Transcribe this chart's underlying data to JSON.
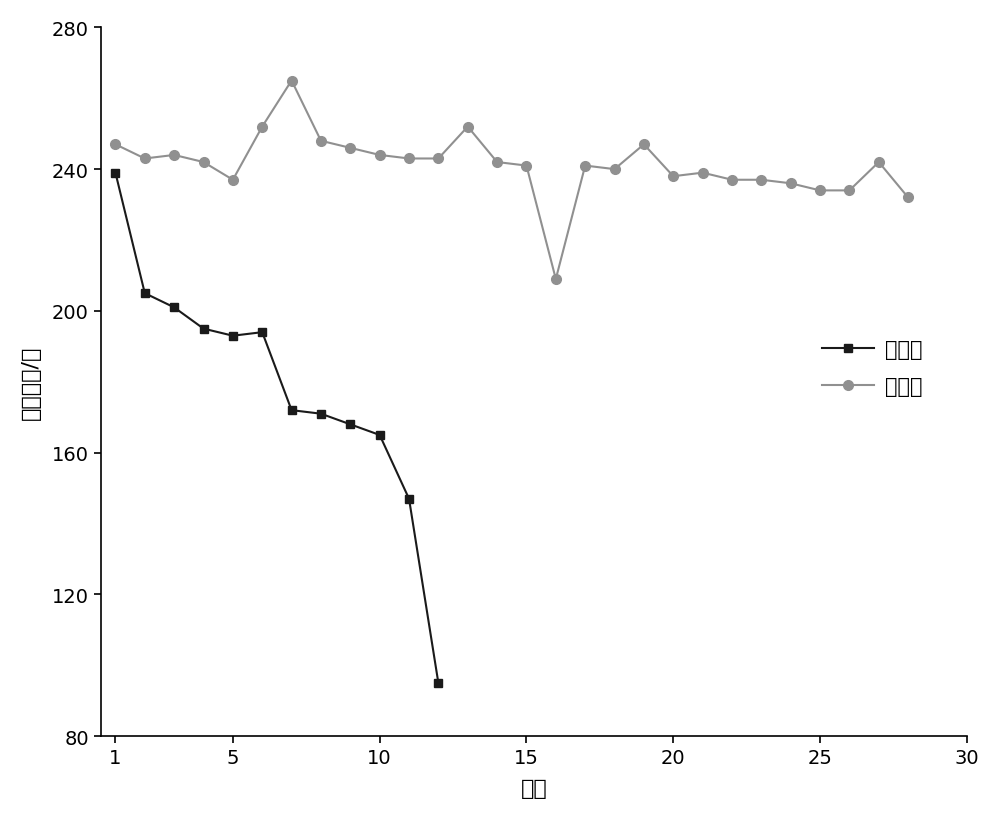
{
  "untreated_x": [
    1,
    2,
    3,
    4,
    5,
    6,
    7,
    8,
    9,
    10,
    11,
    12
  ],
  "untreated_y": [
    239,
    205,
    201,
    195,
    193,
    194,
    172,
    171,
    168,
    165,
    147,
    95
  ],
  "treated_x": [
    1,
    2,
    3,
    4,
    5,
    6,
    7,
    8,
    9,
    10,
    11,
    12,
    13,
    14,
    15,
    16,
    17,
    18,
    19,
    20,
    21,
    22,
    23,
    24,
    25,
    26,
    27,
    28
  ],
  "treated_y": [
    247,
    243,
    244,
    242,
    237,
    252,
    265,
    248,
    246,
    244,
    243,
    243,
    252,
    242,
    241,
    209,
    241,
    240,
    247,
    238,
    239,
    237,
    237,
    236,
    234,
    234,
    242,
    232
  ],
  "untreated_color": "#1a1a1a",
  "treated_color": "#909090",
  "untreated_label": "未处理",
  "treated_label": "处理后",
  "xlabel": "日期",
  "ylabel": "蕹发量吐/天",
  "xlim": [
    0.5,
    29.5
  ],
  "ylim": [
    80,
    280
  ],
  "xticks": [
    1,
    5,
    10,
    15,
    20,
    25,
    30
  ],
  "yticks": [
    80,
    120,
    160,
    200,
    240,
    280
  ],
  "background_color": "#ffffff",
  "line_width": 1.5,
  "marker_size_square": 6,
  "marker_size_circle": 7,
  "legend_fontsize": 15,
  "axis_label_fontsize": 16,
  "tick_fontsize": 14
}
